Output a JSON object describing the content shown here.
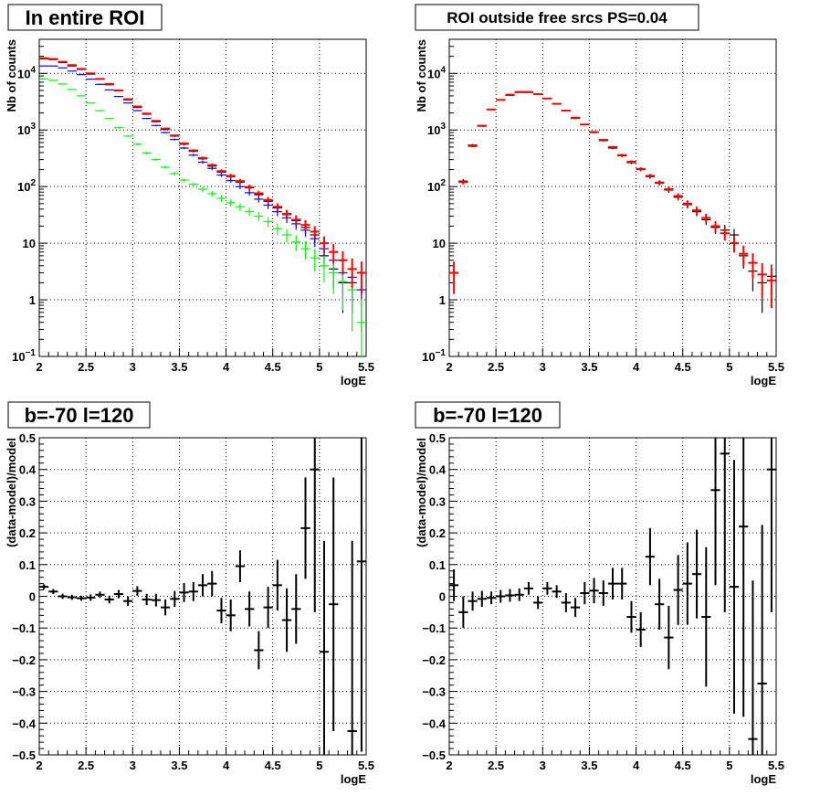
{
  "chart_data": [
    {
      "type": "scatter",
      "panel": "top-left",
      "title": "In entire ROI",
      "xlabel": "logE",
      "ylabel": "Nb of counts",
      "xlim": [
        2,
        5.5
      ],
      "ylim": [
        0.1,
        40000
      ],
      "yscale": "log",
      "grid": true,
      "xticks": [
        "2",
        "2.5",
        "3",
        "3.5",
        "4",
        "4.5",
        "5",
        "5.5"
      ],
      "yticks": [
        {
          "value": 0.1,
          "base": "10",
          "exp": "−1"
        },
        {
          "value": 1,
          "label": "1"
        },
        {
          "value": 10,
          "label": "10"
        },
        {
          "value": 100,
          "base": "10",
          "exp": "2"
        },
        {
          "value": 1000,
          "base": "10",
          "exp": "3"
        },
        {
          "value": 10000,
          "base": "10",
          "exp": "4"
        }
      ],
      "series": [
        {
          "color": "#000000",
          "x": [
            2.05,
            2.15,
            2.25,
            2.35,
            2.45,
            2.55,
            2.65,
            2.75,
            2.85,
            2.95,
            3.05,
            3.15,
            3.25,
            3.35,
            3.45,
            3.55,
            3.65,
            3.75,
            3.85,
            3.95,
            4.05,
            4.15,
            4.25,
            4.35,
            4.45,
            4.55,
            4.65,
            4.75,
            4.85,
            4.95,
            5.05,
            5.15,
            5.25,
            5.35,
            5.45
          ],
          "y": [
            18000,
            17500,
            15500,
            13500,
            11700,
            9700,
            7900,
            6300,
            4900,
            3400,
            2500,
            1900,
            1400,
            1020,
            780,
            560,
            420,
            310,
            230,
            180,
            150,
            120,
            95,
            72,
            55,
            42,
            32,
            25,
            19,
            14,
            6,
            3.5,
            2,
            2,
            3
          ]
        },
        {
          "color": "#0000ff",
          "x": [
            2.05,
            2.15,
            2.25,
            2.35,
            2.45,
            2.55,
            2.65,
            2.75,
            2.85,
            2.95,
            3.05,
            3.15,
            3.25,
            3.35,
            3.45,
            3.55,
            3.65,
            3.75,
            3.85,
            3.95,
            4.05,
            4.15,
            4.25,
            4.35,
            4.45,
            4.55,
            4.65,
            4.75,
            4.85,
            4.95,
            5.05,
            5.15,
            5.25,
            5.35,
            5.45
          ],
          "y": [
            13500,
            13500,
            12500,
            11000,
            9500,
            7900,
            6400,
            5100,
            3900,
            3000,
            2200,
            1600,
            1200,
            900,
            680,
            480,
            360,
            270,
            210,
            160,
            128,
            100,
            78,
            60,
            47,
            36,
            28,
            22,
            17,
            12,
            8,
            5,
            3,
            2.5,
            1.5
          ]
        },
        {
          "color": "#00ff00",
          "x": [
            2.05,
            2.15,
            2.25,
            2.35,
            2.45,
            2.55,
            2.65,
            2.75,
            2.85,
            2.95,
            3.05,
            3.15,
            3.25,
            3.35,
            3.45,
            3.55,
            3.65,
            3.75,
            3.85,
            3.95,
            4.05,
            4.15,
            4.25,
            4.35,
            4.45,
            4.55,
            4.65,
            4.75,
            4.85,
            4.95,
            5.05,
            5.15,
            5.25,
            5.35,
            5.45
          ],
          "y": [
            8000,
            7500,
            6500,
            5200,
            4000,
            3000,
            2200,
            1600,
            1100,
            780,
            560,
            390,
            300,
            220,
            170,
            130,
            110,
            90,
            75,
            62,
            52,
            44,
            36,
            30,
            24,
            18,
            14,
            10.5,
            8,
            5.5,
            4,
            3,
            2.1,
            1.5,
            0.4
          ]
        },
        {
          "color": "#ff0000",
          "x": [
            2.05,
            2.15,
            2.25,
            2.35,
            2.45,
            2.55,
            2.65,
            2.75,
            2.85,
            2.95,
            3.05,
            3.15,
            3.25,
            3.35,
            3.45,
            3.55,
            3.65,
            3.75,
            3.85,
            3.95,
            4.05,
            4.15,
            4.25,
            4.35,
            4.45,
            4.55,
            4.65,
            4.75,
            4.85,
            4.95,
            5.05,
            5.15,
            5.25,
            5.35,
            5.45
          ],
          "y": [
            18500,
            18000,
            16000,
            14000,
            12000,
            10000,
            8000,
            6500,
            5000,
            3500,
            2600,
            1950,
            1450,
            1060,
            800,
            580,
            435,
            320,
            240,
            188,
            155,
            125,
            98,
            76,
            58,
            44,
            33,
            26,
            21,
            16,
            10,
            7,
            5,
            3.5,
            3
          ]
        }
      ]
    },
    {
      "type": "scatter",
      "panel": "top-right",
      "title": "ROI outside free srcs PS=0.04",
      "xlabel": "logE",
      "ylabel": "Nb of counts",
      "xlim": [
        2,
        5.5
      ],
      "ylim": [
        0.1,
        40000
      ],
      "yscale": "log",
      "grid": true,
      "xticks": [
        "2",
        "2.5",
        "3",
        "3.5",
        "4",
        "4.5",
        "5",
        "5.5"
      ],
      "yticks": [
        {
          "value": 0.1,
          "base": "10",
          "exp": "−1"
        },
        {
          "value": 1,
          "label": "1"
        },
        {
          "value": 10,
          "label": "10"
        },
        {
          "value": 100,
          "base": "10",
          "exp": "2"
        },
        {
          "value": 1000,
          "base": "10",
          "exp": "3"
        },
        {
          "value": 10000,
          "base": "10",
          "exp": "4"
        }
      ],
      "series": [
        {
          "color": "#000000",
          "x": [
            2.15,
            2.25,
            2.35,
            2.45,
            2.55,
            2.65,
            2.75,
            2.85,
            2.95,
            3.05,
            3.15,
            3.25,
            3.35,
            3.45,
            3.55,
            3.65,
            3.75,
            3.85,
            3.95,
            4.05,
            4.15,
            4.25,
            4.35,
            4.45,
            4.55,
            4.65,
            4.75,
            4.85,
            4.95,
            5.05,
            5.15,
            5.25,
            5.35,
            5.45
          ],
          "y": [
            125,
            540,
            1200,
            2300,
            3400,
            4100,
            4600,
            4600,
            4300,
            3600,
            2900,
            2200,
            1600,
            1250,
            900,
            650,
            480,
            350,
            265,
            200,
            150,
            115,
            87,
            65,
            48,
            36,
            26,
            19,
            17,
            14,
            6,
            3.2,
            2,
            2.6
          ]
        },
        {
          "color": "#ff0000",
          "x": [
            2.05,
            2.15,
            2.25,
            2.35,
            2.45,
            2.55,
            2.65,
            2.75,
            2.85,
            2.95,
            3.05,
            3.15,
            3.25,
            3.35,
            3.45,
            3.55,
            3.65,
            3.75,
            3.85,
            3.95,
            4.05,
            4.15,
            4.25,
            4.35,
            4.45,
            4.55,
            4.65,
            4.75,
            4.85,
            4.95,
            5.05,
            5.15,
            5.25,
            5.35,
            5.45
          ],
          "y": [
            3,
            120,
            520,
            1180,
            2300,
            3400,
            4200,
            4700,
            4700,
            4300,
            3600,
            2900,
            2200,
            1650,
            1250,
            920,
            670,
            500,
            360,
            275,
            205,
            155,
            118,
            90,
            68,
            50,
            38,
            28,
            20,
            15,
            10,
            6.5,
            4.5,
            2.8,
            2.2
          ]
        }
      ]
    },
    {
      "type": "scatter",
      "panel": "bottom-left",
      "title": "b=-70 l=120",
      "xlabel": "logE",
      "ylabel": "(data-model)/model",
      "xlim": [
        2,
        5.5
      ],
      "ylim": [
        -0.5,
        0.5
      ],
      "grid": true,
      "xticks": [
        "2",
        "2.5",
        "3",
        "3.5",
        "4",
        "4.5",
        "5",
        "5.5"
      ],
      "yticks": [
        "−0.5",
        "−0.4",
        "−0.3",
        "−0.2",
        "−0.1",
        "0",
        "0.1",
        "0.2",
        "0.3",
        "0.4",
        "0.5"
      ],
      "series": [
        {
          "color": "#000000",
          "x": [
            2.05,
            2.15,
            2.25,
            2.35,
            2.45,
            2.55,
            2.65,
            2.75,
            2.85,
            2.95,
            3.05,
            3.15,
            3.25,
            3.35,
            3.45,
            3.55,
            3.65,
            3.75,
            3.85,
            3.95,
            4.05,
            4.15,
            4.25,
            4.35,
            4.45,
            4.55,
            4.65,
            4.75,
            4.85,
            4.95,
            5.05,
            5.15,
            5.35,
            5.45
          ],
          "y": [
            0.03,
            0.015,
            0.0,
            -0.003,
            -0.006,
            -0.004,
            0.005,
            -0.01,
            0.007,
            -0.015,
            0.017,
            -0.01,
            -0.012,
            -0.035,
            -0.008,
            0.012,
            0.015,
            0.035,
            0.04,
            -0.045,
            -0.06,
            0.095,
            -0.04,
            -0.17,
            -0.035,
            0.035,
            -0.075,
            -0.04,
            0.215,
            0.4,
            -0.175,
            -0.025,
            -0.425,
            0.11
          ],
          "err": [
            0.008,
            0.008,
            0.008,
            0.008,
            0.008,
            0.01,
            0.01,
            0.012,
            0.013,
            0.015,
            0.015,
            0.018,
            0.02,
            0.025,
            0.025,
            0.03,
            0.03,
            0.035,
            0.04,
            0.04,
            0.05,
            0.05,
            0.055,
            0.06,
            0.065,
            0.08,
            0.1,
            0.11,
            0.16,
            0.45,
            0.35,
            0.4,
            0.6,
            0.6
          ]
        }
      ]
    },
    {
      "type": "scatter",
      "panel": "bottom-right",
      "title": "b=-70 l=120",
      "xlabel": "logE",
      "ylabel": "(data-model)/model",
      "xlim": [
        2,
        5.5
      ],
      "ylim": [
        -0.5,
        0.5
      ],
      "grid": true,
      "xticks": [
        "2",
        "2.5",
        "3",
        "3.5",
        "4",
        "4.5",
        "5",
        "5.5"
      ],
      "yticks": [
        "−0.5",
        "−0.4",
        "−0.3",
        "−0.2",
        "−0.1",
        "0",
        "0.1",
        "0.2",
        "0.3",
        "0.4",
        "0.5"
      ],
      "series": [
        {
          "color": "#000000",
          "x": [
            2.05,
            2.15,
            2.25,
            2.35,
            2.45,
            2.55,
            2.65,
            2.75,
            2.85,
            2.95,
            3.05,
            3.15,
            3.25,
            3.35,
            3.45,
            3.55,
            3.65,
            3.75,
            3.85,
            3.95,
            4.05,
            4.15,
            4.25,
            4.35,
            4.45,
            4.55,
            4.65,
            4.75,
            4.85,
            4.95,
            5.05,
            5.15,
            5.25,
            5.35,
            5.45
          ],
          "y": [
            0.035,
            -0.05,
            -0.015,
            -0.008,
            -0.005,
            0.0,
            0.003,
            0.005,
            0.025,
            -0.02,
            0.025,
            0.015,
            -0.02,
            -0.035,
            0.01,
            0.018,
            0.01,
            0.04,
            0.04,
            -0.065,
            -0.105,
            0.125,
            -0.025,
            -0.13,
            0.02,
            0.04,
            0.07,
            -0.065,
            0.335,
            0.45,
            0.03,
            0.22,
            -0.45,
            -0.275,
            0.4
          ],
          "err": [
            0.05,
            0.05,
            0.03,
            0.025,
            0.02,
            0.02,
            0.02,
            0.02,
            0.02,
            0.02,
            0.02,
            0.02,
            0.03,
            0.03,
            0.035,
            0.04,
            0.04,
            0.05,
            0.05,
            0.05,
            0.055,
            0.09,
            0.08,
            0.1,
            0.11,
            0.13,
            0.14,
            0.22,
            0.3,
            0.5,
            0.4,
            0.6,
            0.5,
            0.5,
            0.45
          ]
        }
      ]
    }
  ]
}
